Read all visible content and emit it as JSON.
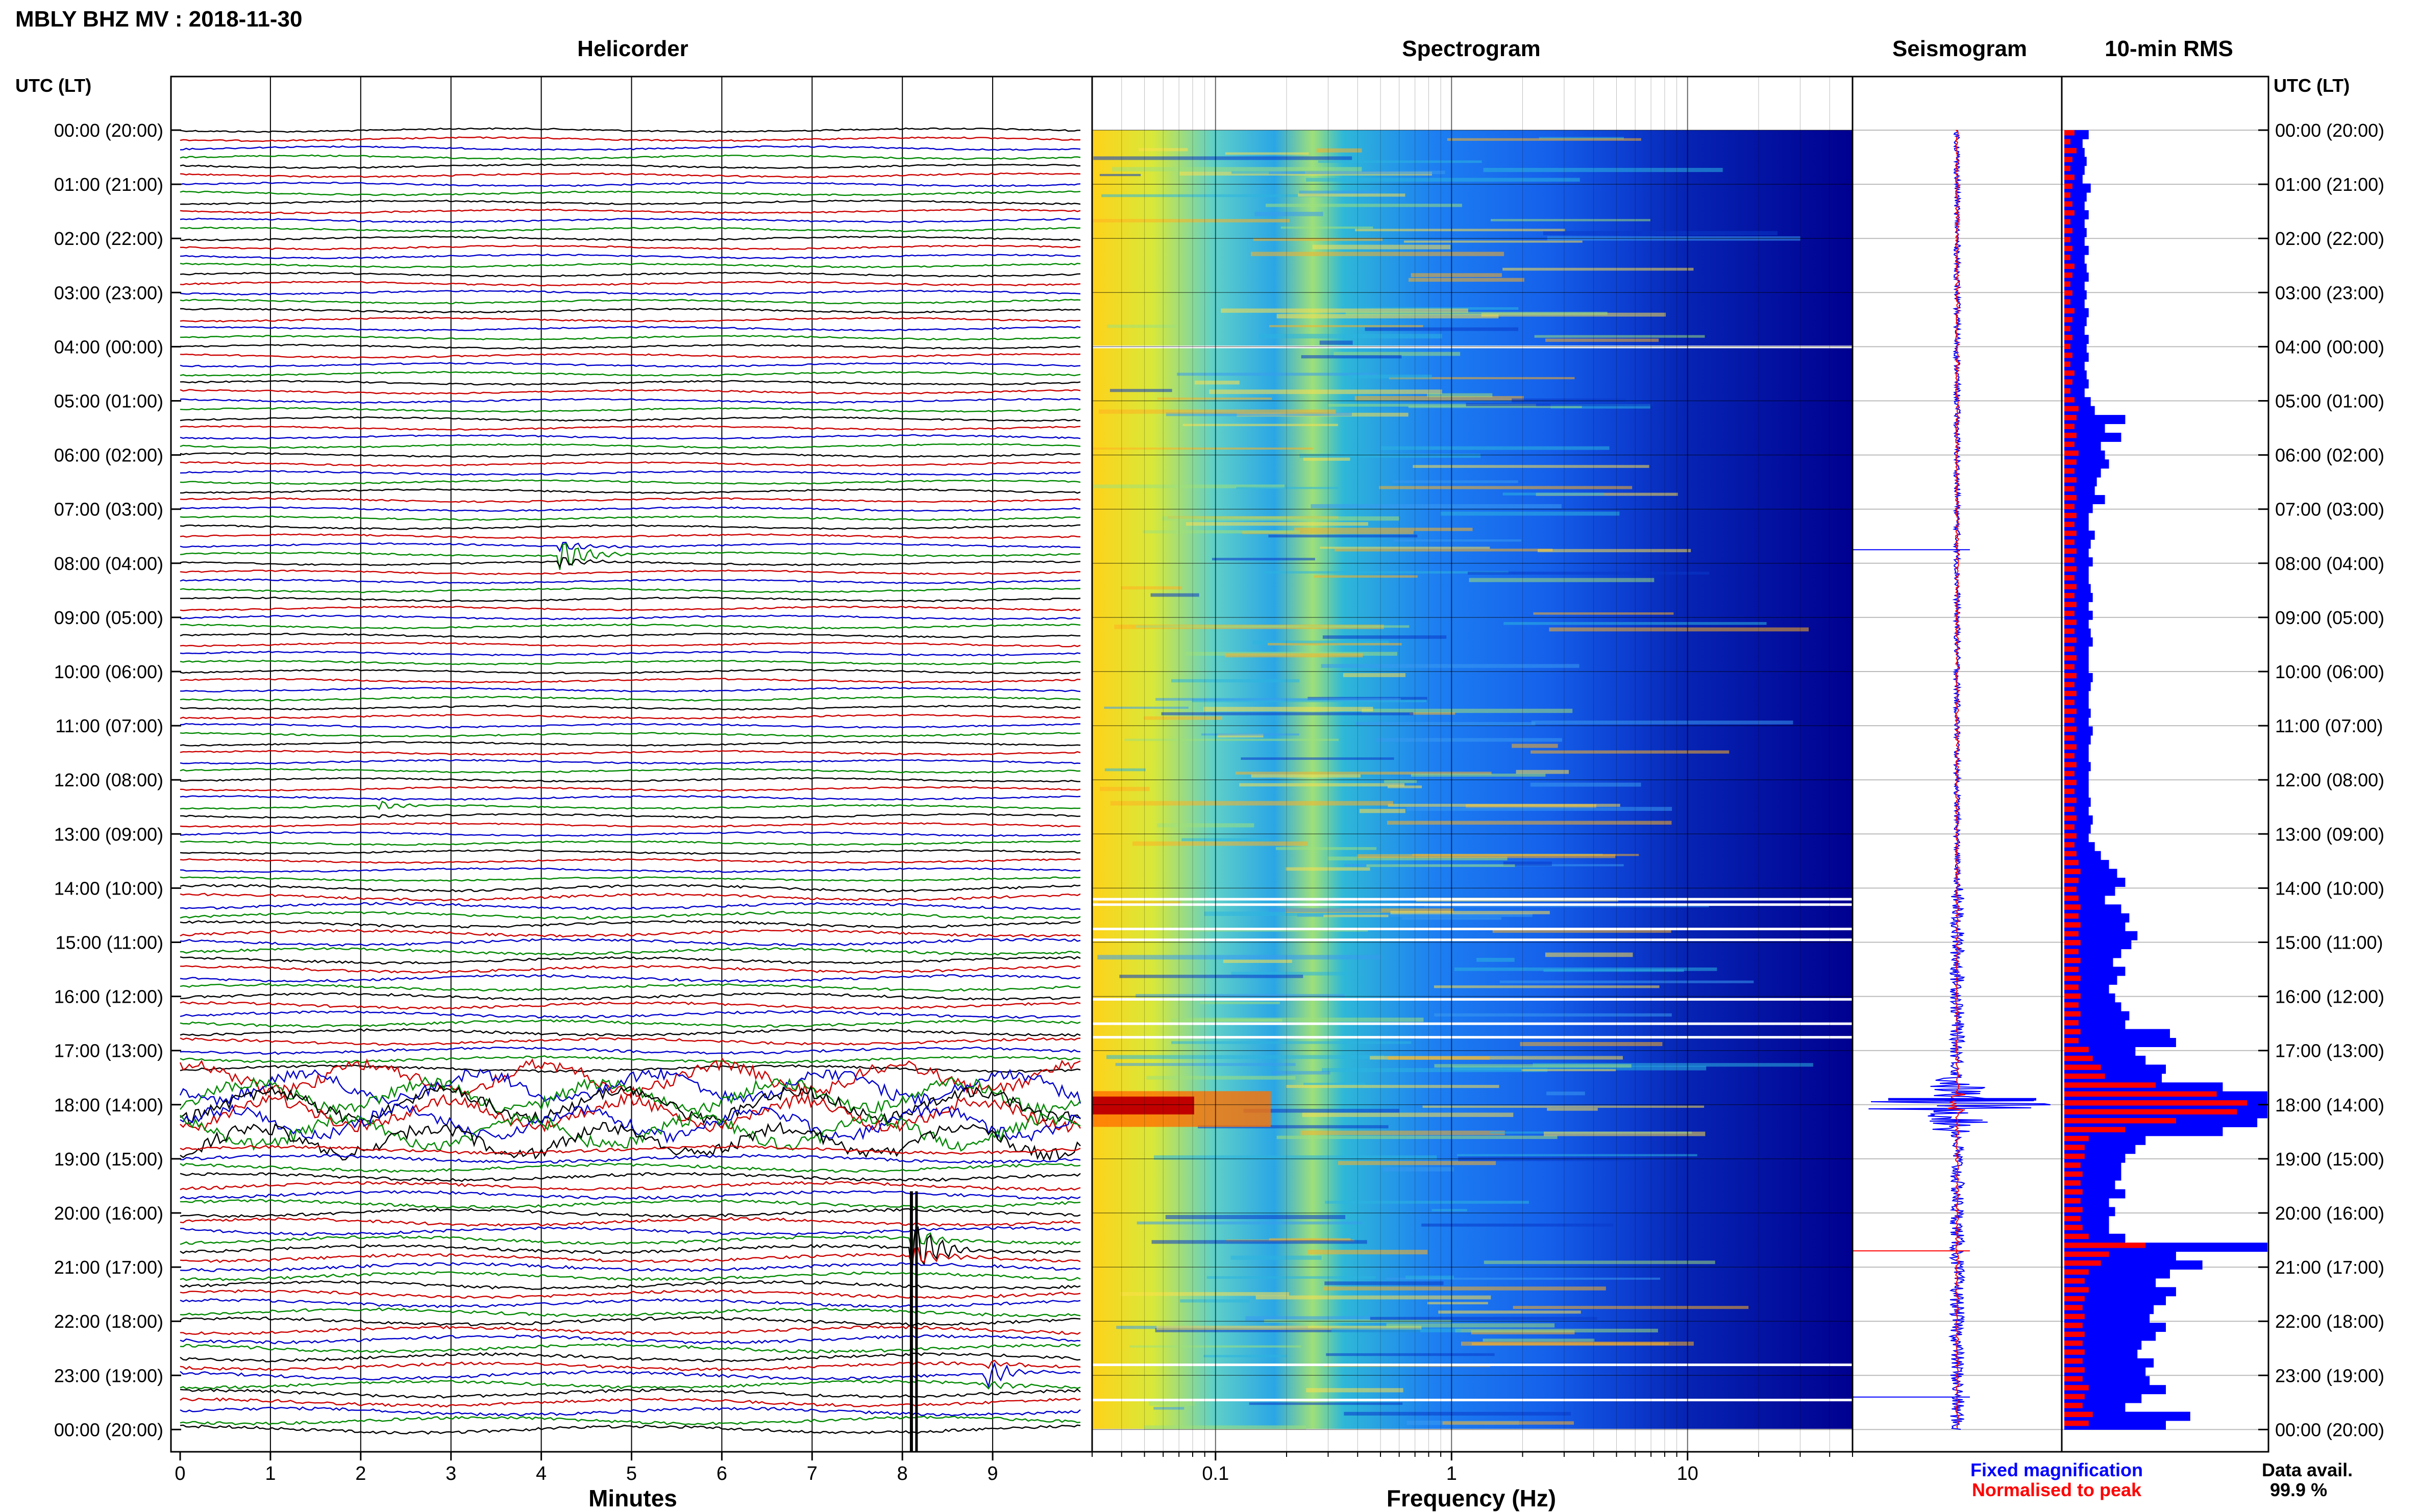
{
  "header": {
    "title": "MBLY BHZ MV : 2018-11-30",
    "utc_label_left": "UTC (LT)",
    "utc_label_right": "UTC (LT)"
  },
  "panels": {
    "helicorder": {
      "title": "Helicorder",
      "xlabel": "Minutes"
    },
    "spectrogram": {
      "title": "Spectrogram",
      "xlabel": "Frequency (Hz)"
    },
    "seismogram": {
      "title": "Seismogram"
    },
    "rms": {
      "title": "10-min RMS"
    }
  },
  "legend": {
    "fixed_label": "Fixed magnification",
    "normalised_label": "Normalised to peak"
  },
  "data_avail": {
    "label": "Data avail.",
    "value": "99.9 %"
  },
  "colors": {
    "trace_cycle": [
      "#000000",
      "#cc0000",
      "#0000cc",
      "#008800"
    ],
    "fixed": "#0000ff",
    "normalised": "#ff0000",
    "spectro_low": "#00008f",
    "spectro_high": "#800000"
  },
  "chart_data": {
    "type": "heatmap",
    "time_ticks": [
      "00:00 (20:00)",
      "01:00 (21:00)",
      "02:00 (22:00)",
      "03:00 (23:00)",
      "04:00 (00:00)",
      "05:00 (01:00)",
      "06:00 (02:00)",
      "07:00 (03:00)",
      "08:00 (04:00)",
      "09:00 (05:00)",
      "10:00 (06:00)",
      "11:00 (07:00)",
      "12:00 (08:00)",
      "13:00 (09:00)",
      "14:00 (10:00)",
      "15:00 (11:00)",
      "16:00 (12:00)",
      "17:00 (13:00)",
      "18:00 (14:00)",
      "19:00 (15:00)",
      "20:00 (16:00)",
      "21:00 (17:00)",
      "22:00 (18:00)",
      "23:00 (19:00)",
      "00:00 (20:00)"
    ],
    "minute_ticks": [
      "0",
      "1",
      "2",
      "3",
      "4",
      "5",
      "6",
      "7",
      "8",
      "9"
    ],
    "minutes_range": [
      0,
      10
    ],
    "freq_ticks": [
      "0.1",
      "1",
      "10"
    ],
    "freq_range": [
      0.03,
      50
    ],
    "freq_scale": "log",
    "trace_count": 145,
    "rows_per_hour": 6,
    "events": [
      {
        "time_h": 7.75,
        "minute": 4.2,
        "amp": 2.2,
        "type": "local"
      },
      {
        "time_h": 12.5,
        "minute": 2.2,
        "amp": 0.6,
        "type": "local"
      },
      {
        "time_h": 18.0,
        "minute": 0.0,
        "amp": 0.9,
        "type": "long-period"
      },
      {
        "time_h": 20.7,
        "minute": 8.1,
        "amp": 4.0,
        "type": "regional"
      },
      {
        "time_h": 23.0,
        "minute": 8.9,
        "amp": 1.8,
        "type": "local"
      }
    ],
    "rms": {
      "fixed": [
        0.12,
        0.09,
        0.1,
        0.11,
        0.1,
        0.09,
        0.13,
        0.11,
        0.1,
        0.12,
        0.1,
        0.11,
        0.1,
        0.12,
        0.1,
        0.11,
        0.12,
        0.1,
        0.11,
        0.1,
        0.12,
        0.11,
        0.1,
        0.12,
        0.11,
        0.12,
        0.1,
        0.11,
        0.12,
        0.1,
        0.13,
        0.15,
        0.3,
        0.2,
        0.28,
        0.18,
        0.2,
        0.22,
        0.18,
        0.16,
        0.15,
        0.2,
        0.14,
        0.12,
        0.12,
        0.15,
        0.13,
        0.12,
        0.14,
        0.12,
        0.12,
        0.13,
        0.14,
        0.12,
        0.14,
        0.12,
        0.13,
        0.14,
        0.12,
        0.12,
        0.12,
        0.14,
        0.13,
        0.12,
        0.12,
        0.13,
        0.12,
        0.14,
        0.13,
        0.12,
        0.12,
        0.13,
        0.12,
        0.12,
        0.12,
        0.13,
        0.12,
        0.14,
        0.13,
        0.12,
        0.15,
        0.18,
        0.22,
        0.26,
        0.3,
        0.25,
        0.2,
        0.28,
        0.32,
        0.3,
        0.36,
        0.33,
        0.28,
        0.24,
        0.3,
        0.26,
        0.22,
        0.25,
        0.28,
        0.32,
        0.3,
        0.52,
        0.55,
        0.35,
        0.4,
        0.5,
        0.48,
        0.78,
        1.0,
        1.0,
        1.0,
        0.95,
        0.78,
        0.4,
        0.35,
        0.3,
        0.28,
        0.28,
        0.25,
        0.3,
        0.22,
        0.25,
        0.22,
        0.22,
        0.3,
        1.0,
        0.55,
        0.68,
        0.52,
        0.45,
        0.55,
        0.5,
        0.44,
        0.42,
        0.5,
        0.45,
        0.38,
        0.36,
        0.44,
        0.4,
        0.42,
        0.5,
        0.38,
        0.3,
        0.62,
        0.5
      ],
      "normalised": [
        0.05,
        0.03,
        0.06,
        0.04,
        0.03,
        0.05,
        0.04,
        0.03,
        0.04,
        0.05,
        0.03,
        0.04,
        0.03,
        0.04,
        0.03,
        0.05,
        0.04,
        0.03,
        0.04,
        0.03,
        0.05,
        0.04,
        0.03,
        0.04,
        0.03,
        0.04,
        0.03,
        0.05,
        0.04,
        0.03,
        0.05,
        0.07,
        0.06,
        0.05,
        0.06,
        0.05,
        0.07,
        0.06,
        0.05,
        0.06,
        0.05,
        0.06,
        0.05,
        0.06,
        0.05,
        0.06,
        0.05,
        0.06,
        0.05,
        0.06,
        0.05,
        0.06,
        0.05,
        0.06,
        0.05,
        0.06,
        0.05,
        0.06,
        0.05,
        0.06,
        0.05,
        0.06,
        0.05,
        0.06,
        0.05,
        0.06,
        0.05,
        0.06,
        0.05,
        0.06,
        0.05,
        0.06,
        0.05,
        0.06,
        0.05,
        0.06,
        0.05,
        0.06,
        0.05,
        0.06,
        0.05,
        0.06,
        0.07,
        0.08,
        0.07,
        0.06,
        0.07,
        0.08,
        0.07,
        0.08,
        0.07,
        0.08,
        0.07,
        0.08,
        0.07,
        0.08,
        0.07,
        0.08,
        0.07,
        0.08,
        0.07,
        0.08,
        0.07,
        0.12,
        0.14,
        0.18,
        0.2,
        0.45,
        0.75,
        0.9,
        0.85,
        0.55,
        0.3,
        0.12,
        0.1,
        0.1,
        0.08,
        0.09,
        0.08,
        0.09,
        0.08,
        0.09,
        0.08,
        0.09,
        0.12,
        0.4,
        0.22,
        0.18,
        0.12,
        0.1,
        0.12,
        0.1,
        0.09,
        0.1,
        0.09,
        0.1,
        0.09,
        0.1,
        0.09,
        0.1,
        0.09,
        0.12,
        0.1,
        0.09,
        0.14,
        0.12
      ]
    }
  }
}
